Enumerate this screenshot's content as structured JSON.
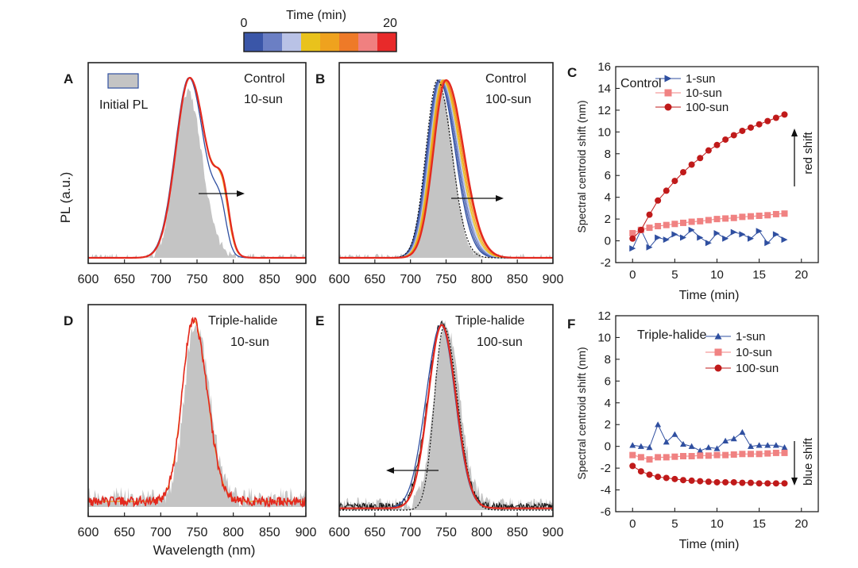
{
  "colorbar": {
    "title": "Time (min)",
    "min_label": "0",
    "max_label": "20",
    "colors": [
      "#3a56a8",
      "#6b7fc4",
      "#b9c2e6",
      "#e9c21c",
      "#efa21e",
      "#ee7a28",
      "#f08080",
      "#e82a2a"
    ]
  },
  "colors": {
    "initial_pl": "#c4c4c4",
    "final_red": "#e3281e",
    "blue": "#2f4fa0",
    "orange": "#f0a020",
    "salmon": "#f08282",
    "dark_red": "#c01a1a"
  },
  "spectra_axes": {
    "y_label": "PL (a.u.)",
    "x_label": "Wavelength (nm)",
    "x_ticks": [
      "600",
      "650",
      "700",
      "750",
      "800",
      "850",
      "900"
    ]
  },
  "panels": {
    "A": {
      "letter": "A",
      "material": "Control",
      "intensity": "10-sun",
      "legend_label": "Initial PL"
    },
    "B": {
      "letter": "B",
      "material": "Control",
      "intensity": "100-sun"
    },
    "D": {
      "letter": "D",
      "material": "Triple-halide",
      "intensity": "10-sun"
    },
    "E": {
      "letter": "E",
      "material": "Triple-halide",
      "intensity": "100-sun"
    },
    "C": {
      "letter": "C",
      "material": "Control",
      "annotation": "red shift"
    },
    "F": {
      "letter": "F",
      "material": "Triple-halide",
      "annotation": "blue shift"
    }
  },
  "chart_data": [
    {
      "panel": "A",
      "type": "line",
      "x_range": [
        600,
        900
      ],
      "series": [
        {
          "name": "Initial PL",
          "style": "filled-area",
          "peak_nm": 738,
          "fwhm_left_nm": 24,
          "fwhm_right_nm": 26
        },
        {
          "style": "line",
          "peak_nm": 740,
          "shoulder_nm": 782
        }
      ]
    },
    {
      "panel": "B",
      "type": "line",
      "x_range": [
        600,
        900
      ],
      "series": [
        {
          "style": "filled-area",
          "peak_nm": 740
        },
        {
          "style": "line-family",
          "start_peak_nm": 740,
          "end_peak_nm": 750
        }
      ]
    },
    {
      "panel": "D",
      "type": "line",
      "x_range": [
        600,
        900
      ],
      "series": [
        {
          "style": "filled-area",
          "peak_nm": 745
        },
        {
          "style": "line",
          "peak_nm": 745
        }
      ]
    },
    {
      "panel": "E",
      "type": "line",
      "x_range": [
        600,
        900
      ],
      "series": [
        {
          "style": "filled-area",
          "peak_nm": 748
        },
        {
          "style": "line",
          "peak_nm": 744
        }
      ]
    },
    {
      "panel": "C",
      "type": "scatter",
      "xlabel": "Time (min)",
      "ylabel": "Spectral centroid shift (nm)",
      "xlim": [
        -2,
        22
      ],
      "ylim": [
        -2,
        16
      ],
      "x_ticks": [
        0,
        5,
        10,
        15,
        20
      ],
      "y_ticks": [
        -2,
        0,
        2,
        4,
        6,
        8,
        10,
        12,
        14,
        16
      ],
      "legend": "top-left",
      "series": [
        {
          "name": "1-sun",
          "marker": "triangle-right",
          "color": "#2f4fa0",
          "x": [
            0,
            1,
            2,
            3,
            4,
            5,
            6,
            7,
            8,
            9,
            10,
            11,
            12,
            13,
            14,
            15,
            16,
            17,
            18
          ],
          "y": [
            -0.7,
            1.0,
            -0.6,
            0.3,
            0.1,
            0.6,
            0.3,
            1.0,
            0.3,
            -0.2,
            0.7,
            0.2,
            0.8,
            0.6,
            0.2,
            0.9,
            -0.2,
            0.6,
            0.1
          ]
        },
        {
          "name": "10-sun",
          "marker": "square",
          "color": "#f08282",
          "x": [
            0,
            1,
            2,
            3,
            4,
            5,
            6,
            7,
            8,
            9,
            10,
            11,
            12,
            13,
            14,
            15,
            16,
            17,
            18
          ],
          "y": [
            0.7,
            1.0,
            1.2,
            1.35,
            1.45,
            1.55,
            1.65,
            1.75,
            1.8,
            1.9,
            2.0,
            2.05,
            2.1,
            2.2,
            2.25,
            2.3,
            2.35,
            2.45,
            2.5
          ]
        },
        {
          "name": "100-sun",
          "marker": "circle",
          "color": "#c01a1a",
          "x": [
            0,
            1,
            2,
            3,
            4,
            5,
            6,
            7,
            8,
            9,
            10,
            11,
            12,
            13,
            14,
            15,
            16,
            17,
            18
          ],
          "y": [
            0.2,
            1.0,
            2.4,
            3.7,
            4.6,
            5.5,
            6.3,
            7.0,
            7.6,
            8.3,
            8.8,
            9.3,
            9.7,
            10.1,
            10.4,
            10.7,
            11.0,
            11.3,
            11.6
          ]
        }
      ]
    },
    {
      "panel": "F",
      "type": "scatter",
      "xlabel": "Time (min)",
      "ylabel": "Spectral centroid shift (nm)",
      "xlim": [
        -2,
        22
      ],
      "ylim": [
        -6,
        12
      ],
      "x_ticks": [
        0,
        5,
        10,
        15,
        20
      ],
      "y_ticks": [
        -6,
        -4,
        -2,
        0,
        2,
        4,
        6,
        8,
        10,
        12
      ],
      "legend": "top-left",
      "series": [
        {
          "name": "1-sun",
          "marker": "triangle-up",
          "color": "#2f4fa0",
          "x": [
            0,
            1,
            2,
            3,
            4,
            5,
            6,
            7,
            8,
            9,
            10,
            11,
            12,
            13,
            14,
            15,
            16,
            17,
            18
          ],
          "y": [
            0.1,
            0.0,
            -0.1,
            2.0,
            0.4,
            1.1,
            0.2,
            0.0,
            -0.4,
            -0.1,
            -0.2,
            0.5,
            0.7,
            1.3,
            0.0,
            0.1,
            0.1,
            0.1,
            -0.1
          ]
        },
        {
          "name": "10-sun",
          "marker": "square",
          "color": "#f08282",
          "x": [
            0,
            1,
            2,
            3,
            4,
            5,
            6,
            7,
            8,
            9,
            10,
            11,
            12,
            13,
            14,
            15,
            16,
            17,
            18
          ],
          "y": [
            -0.8,
            -1.0,
            -1.2,
            -1.0,
            -1.0,
            -0.95,
            -0.9,
            -0.9,
            -0.85,
            -0.85,
            -0.8,
            -0.8,
            -0.75,
            -0.7,
            -0.7,
            -0.7,
            -0.65,
            -0.6,
            -0.6
          ]
        },
        {
          "name": "100-sun",
          "marker": "circle",
          "color": "#c01a1a",
          "x": [
            0,
            1,
            2,
            3,
            4,
            5,
            6,
            7,
            8,
            9,
            10,
            11,
            12,
            13,
            14,
            15,
            16,
            17,
            18
          ],
          "y": [
            -1.8,
            -2.3,
            -2.6,
            -2.8,
            -2.9,
            -3.0,
            -3.1,
            -3.15,
            -3.2,
            -3.25,
            -3.3,
            -3.3,
            -3.3,
            -3.35,
            -3.35,
            -3.4,
            -3.4,
            -3.4,
            -3.4
          ]
        }
      ]
    }
  ]
}
